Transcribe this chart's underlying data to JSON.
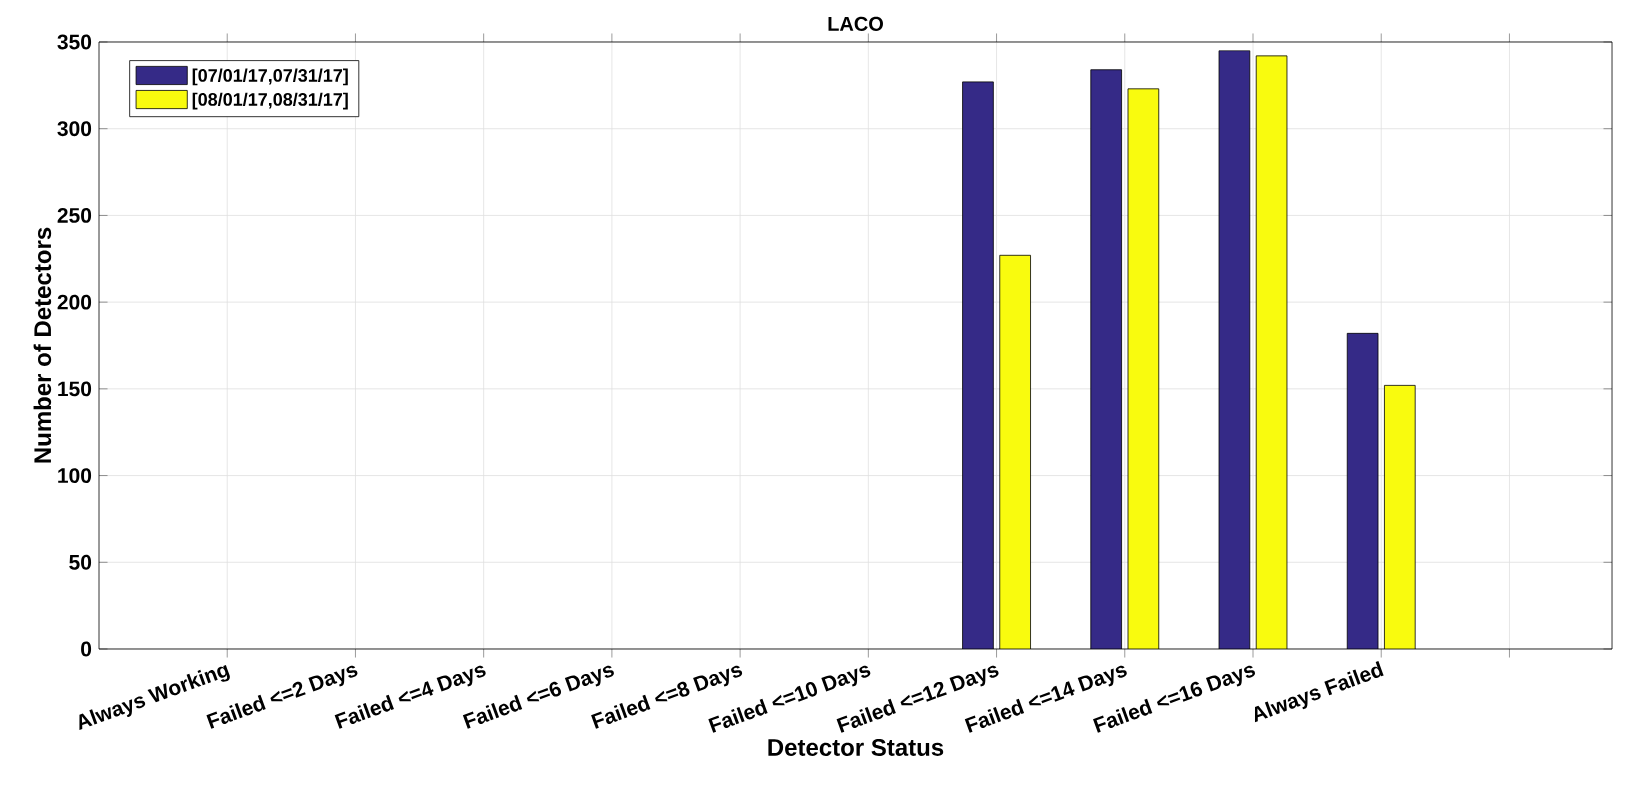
{
  "chart_data": {
    "type": "bar",
    "title": "LACO",
    "xlabel": "Detector Status",
    "ylabel": "Number of Detectors",
    "categories": [
      "Always Working",
      "Failed <=2 Days",
      "Failed <=4 Days",
      "Failed <=6 Days",
      "Failed <=8 Days",
      "Failed <=10 Days",
      "Failed <=12 Days",
      "Failed <=14 Days",
      "Failed <=16 Days",
      "Always Failed",
      null
    ],
    "series": [
      {
        "name": "[07/01/17,07/31/17]",
        "color": "#352a87",
        "values": [
          null,
          null,
          null,
          null,
          null,
          null,
          327,
          334,
          345,
          182,
          null
        ]
      },
      {
        "name": "[08/01/17,08/31/17]",
        "color": "#f9fb0e",
        "values": [
          null,
          null,
          null,
          null,
          null,
          null,
          227,
          323,
          342,
          152,
          null
        ]
      }
    ],
    "ylim": [
      0,
      350
    ],
    "yticks": [
      0,
      50,
      100,
      150,
      200,
      250,
      300,
      350
    ],
    "grid": true,
    "legend": "top left"
  }
}
